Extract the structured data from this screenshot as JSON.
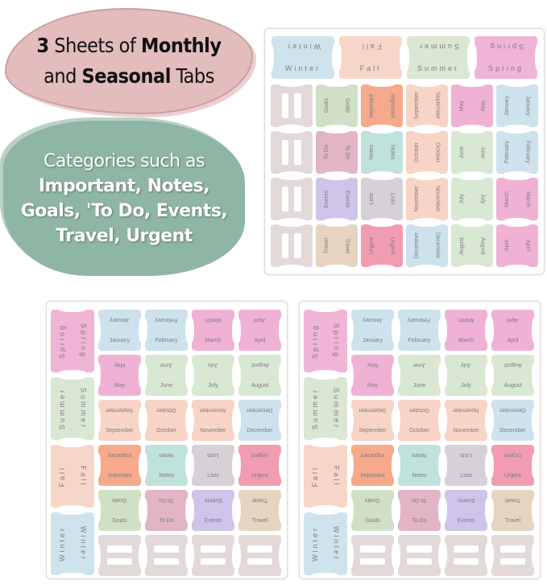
{
  "headline": {
    "number": "3",
    "text1": " Sheets of ",
    "bold1": "Monthly",
    "text2": "and ",
    "bold2": "Seasonal",
    "text3": " Tabs"
  },
  "categories": {
    "line1": "Categories such as",
    "line2": "Important, Notes,",
    "line3": "Goals, 'To Do, Events,",
    "line4": "Travel, Urgent"
  },
  "colors": {
    "Winter": "#cfe3ec",
    "Fall": "#f6d6c9",
    "Summer": "#d9e7d3",
    "Spring": "#f0b5d6",
    "January": "#cde2ec",
    "February": "#cde2ec",
    "March": "#efb2d4",
    "April": "#efb2d4",
    "May": "#efb2d4",
    "June": "#d9e8d2",
    "July": "#d9e8d2",
    "August": "#d9e8d2",
    "September": "#f8d4c6",
    "October": "#f8d4c6",
    "November": "#f8d4c6",
    "December": "#cde2ec",
    "Important": "#f6a98b",
    "Notes": "#c0e2dc",
    "Lists": "#d6d1d6",
    "Urgent": "#f29cb1",
    "Goals": "#cfe0c6",
    "To Do": "#e2b4c5",
    "Events": "#cec4ea",
    "Travel": "#e6d4c1",
    "blank": "#e3d9d9"
  },
  "sheet_a": {
    "seasons": [
      "Winter",
      "Fall",
      "Summer",
      "Spring"
    ],
    "grid": [
      [
        null,
        "Goals",
        "Important",
        "September",
        "May",
        "January"
      ],
      [
        null,
        "To Do",
        "Notes",
        "October",
        "June",
        "February"
      ],
      [
        null,
        "Events",
        "Lists",
        "November",
        "July",
        "March"
      ],
      [
        null,
        "Travel",
        "Urgent",
        "December",
        "August",
        "April"
      ]
    ]
  },
  "sheet_b": {
    "seasons": [
      "Spring",
      "Summer",
      "Fall",
      "Winter"
    ],
    "grid": [
      [
        "January",
        "February",
        "March",
        "April"
      ],
      [
        "May",
        "June",
        "July",
        "August"
      ],
      [
        "September",
        "October",
        "November",
        "December"
      ],
      [
        "Important",
        "Notes",
        "Lists",
        "Urgent"
      ],
      [
        "Goals",
        "To Do",
        "Events",
        "Travel"
      ],
      [
        null,
        null,
        null,
        null
      ]
    ]
  },
  "sheet_c": {
    "seasons": [
      "Spring",
      "Summer",
      "Fall",
      "Winter"
    ],
    "grid": [
      [
        "January",
        "February",
        "March",
        "April"
      ],
      [
        "May",
        "June",
        "July",
        "August"
      ],
      [
        "September",
        "October",
        "November",
        "December"
      ],
      [
        "Important",
        "Notes",
        "Lists",
        "Urgent"
      ],
      [
        "Goals",
        "To Do",
        "Events",
        "Travel"
      ],
      [
        null,
        null,
        null,
        null
      ]
    ]
  }
}
